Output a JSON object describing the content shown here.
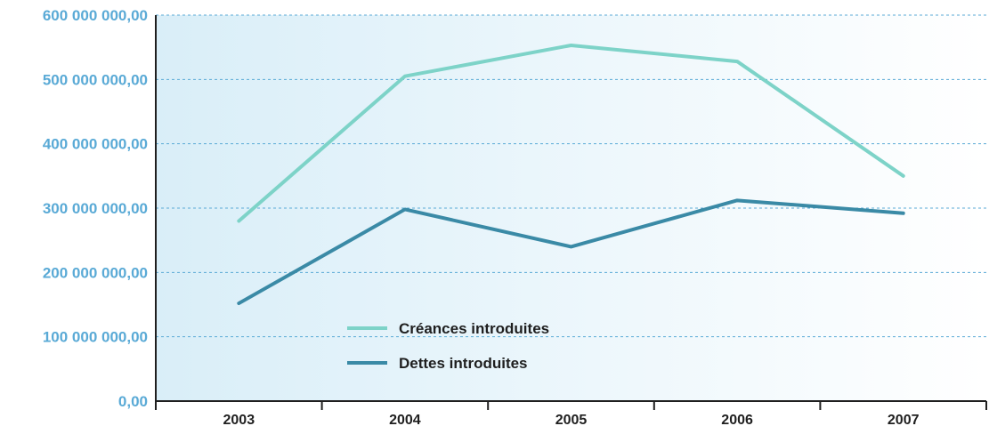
{
  "chart_data": {
    "type": "line",
    "title": "",
    "xlabel": "",
    "ylabel": "",
    "categories": [
      "2003",
      "2004",
      "2005",
      "2006",
      "2007"
    ],
    "ylim": [
      0,
      600000000
    ],
    "y_ticks": [
      {
        "value": 0,
        "label": "0,00"
      },
      {
        "value": 100000000,
        "label": "100 000 000,00"
      },
      {
        "value": 200000000,
        "label": "200 000 000,00"
      },
      {
        "value": 300000000,
        "label": "300 000 000,00"
      },
      {
        "value": 400000000,
        "label": "400 000 000,00"
      },
      {
        "value": 500000000,
        "label": "500 000 000,00"
      },
      {
        "value": 600000000,
        "label": "600 000 000,00"
      }
    ],
    "grid": true,
    "legend_position": "bottom-left inside plot",
    "series": [
      {
        "name": "Créances introduites",
        "color": "#7dd3c8",
        "values": [
          280000000,
          505000000,
          553000000,
          528000000,
          350000000
        ]
      },
      {
        "name": "Dettes introduites",
        "color": "#3a8aa6",
        "values": [
          152000000,
          298000000,
          240000000,
          312000000,
          292000000
        ]
      }
    ]
  },
  "colors": {
    "tick_label": "#5aaad6",
    "grid": "#5aaad6",
    "axis": "#1f1f1f",
    "plot_bg_left": "#d9eef8",
    "plot_bg_right": "#ffffff"
  }
}
